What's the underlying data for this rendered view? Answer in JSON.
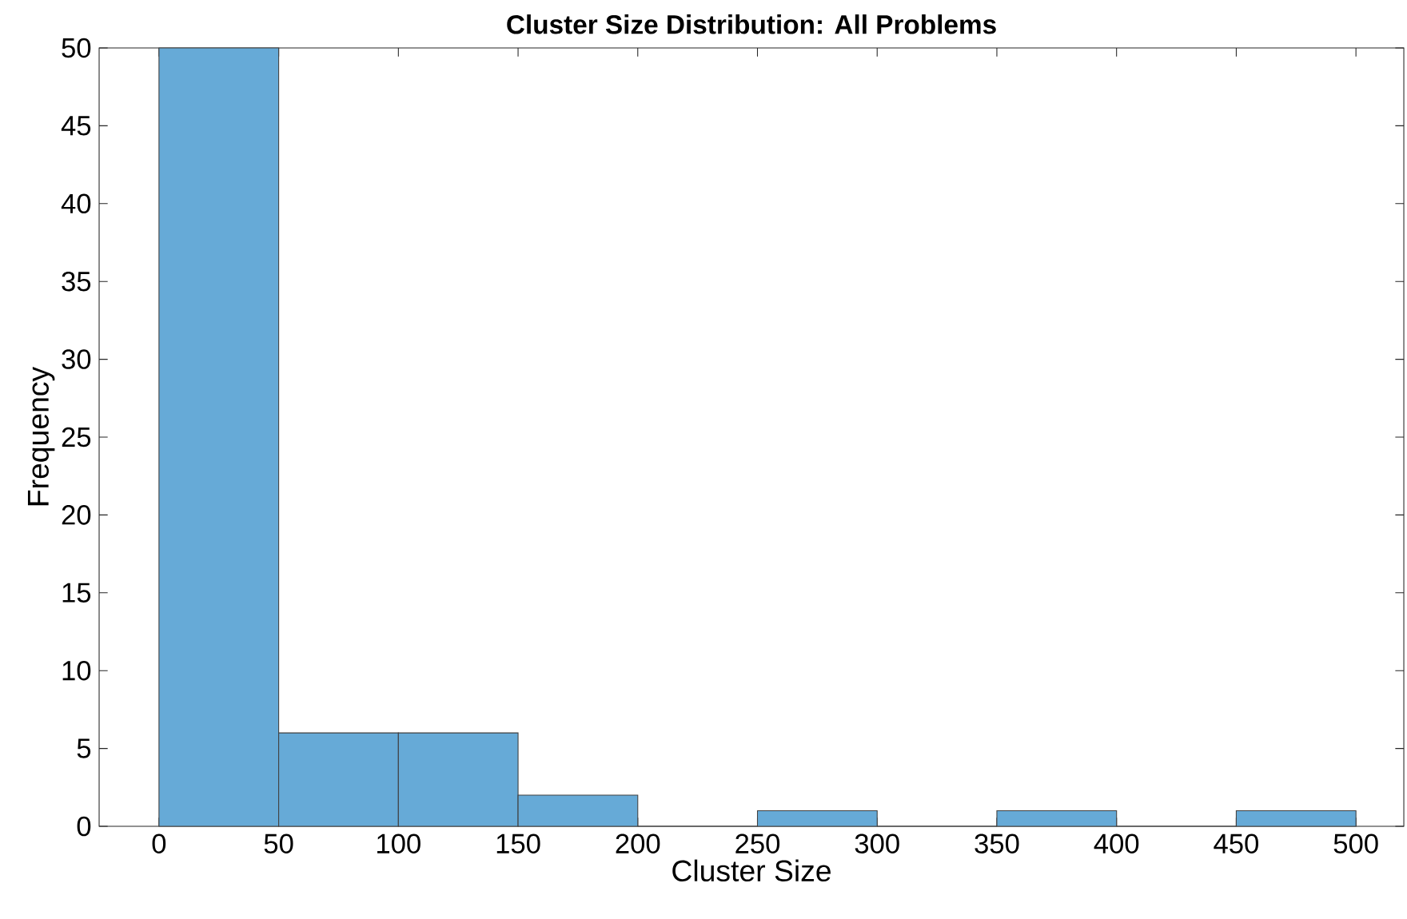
{
  "chart_data": {
    "type": "histogram",
    "title": "Cluster Size Distribution: All Problems",
    "xlabel": "Cluster Size",
    "ylabel": "Frequency",
    "bins": [
      0,
      50,
      100,
      150,
      200,
      250,
      300,
      350,
      400,
      450,
      500
    ],
    "values": [
      50,
      6,
      6,
      2,
      0,
      1,
      0,
      1,
      0,
      1
    ],
    "color": "#66aad7",
    "xlim": [
      -25,
      520
    ],
    "ylim": [
      0,
      50
    ],
    "xticks": [
      0,
      50,
      100,
      150,
      200,
      250,
      300,
      350,
      400,
      450,
      500
    ],
    "yticks": [
      0,
      5,
      10,
      15,
      20,
      25,
      30,
      35,
      40,
      45,
      50
    ]
  }
}
